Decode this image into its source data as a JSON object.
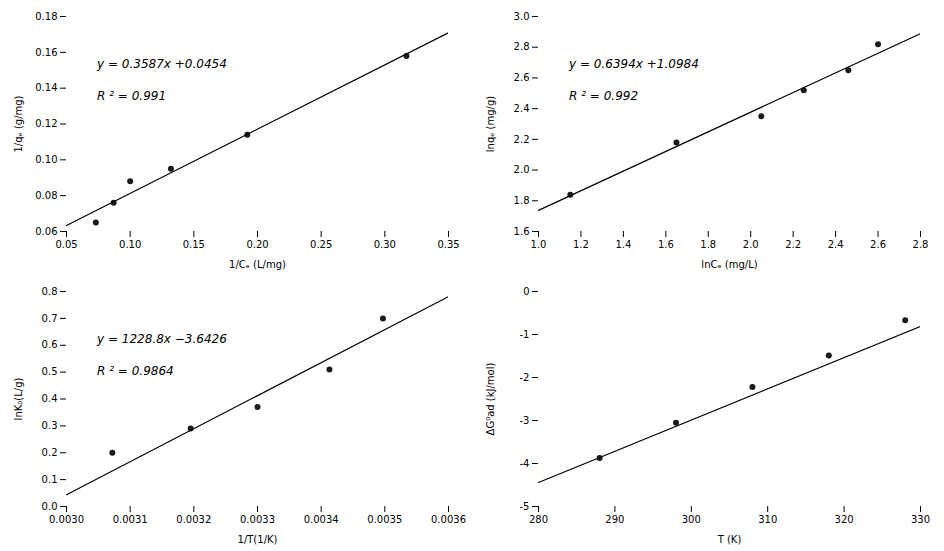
{
  "chart_data": [
    {
      "type": "scatter",
      "xlabel": "1/Cₑ (L/mg)",
      "ylabel": "1/qₑ (g/mg)",
      "annotations": [
        "y = 0.3587x +0.0454",
        "R ² = 0.991"
      ],
      "series": [
        {
          "type": "scatter",
          "color": "#1a1a1a",
          "x": [
            0.073,
            0.087,
            0.1,
            0.132,
            0.192,
            0.317
          ],
          "values": [
            0.065,
            0.076,
            0.088,
            0.095,
            0.114,
            0.158
          ]
        },
        {
          "type": "line",
          "color": "#000000",
          "x": [
            0.05,
            0.35
          ],
          "values": [
            0.063335,
            0.170945
          ]
        }
      ],
      "xlim": [
        0.05,
        0.35
      ],
      "ylim": [
        0.06,
        0.18
      ],
      "xticks": [
        0.05,
        {
          "value": 0.1,
          "label": "0.10"
        },
        0.15,
        {
          "value": 0.2,
          "label": "0.20"
        },
        0.25,
        {
          "value": 0.3,
          "label": "0.30"
        },
        0.35
      ],
      "yticks": [
        0.06,
        0.08,
        {
          "value": 0.1,
          "label": "0.10"
        },
        0.12,
        0.14,
        0.16,
        0.18
      ],
      "grid": false
    },
    {
      "type": "scatter",
      "xlabel": "lnCₑ (mg/L)",
      "ylabel": "lnqₑ (mg/g)",
      "annotations": [
        "y = 0.6394x +1.0984",
        "R ² = 0.992"
      ],
      "series": [
        {
          "type": "scatter",
          "color": "#1a1a1a",
          "x": [
            1.15,
            1.65,
            2.05,
            2.25,
            2.46,
            2.6
          ],
          "values": [
            1.84,
            2.18,
            2.35,
            2.52,
            2.65,
            2.82
          ]
        },
        {
          "type": "line",
          "color": "#000000",
          "x": [
            1.0,
            2.8
          ],
          "values": [
            1.7378,
            2.88872
          ]
        }
      ],
      "xlim": [
        1.0,
        2.8
      ],
      "ylim": [
        1.6,
        3.0
      ],
      "xticks": [
        {
          "value": 1.0,
          "label": "1.0"
        },
        1.2,
        1.4,
        1.6,
        1.8,
        {
          "value": 2.0,
          "label": "2.0"
        },
        2.2,
        2.4,
        2.6,
        2.8
      ],
      "yticks": [
        1.6,
        1.8,
        {
          "value": 2.0,
          "label": "2.0"
        },
        2.2,
        2.4,
        2.6,
        2.8,
        {
          "value": 3.0,
          "label": "3.0"
        }
      ],
      "grid": false
    },
    {
      "type": "scatter",
      "xlabel": "1/T(1/K)",
      "ylabel": "lnK₀(L/g)",
      "annotations": [
        "y = 1228.8x −3.6426",
        "R ² = 0.9864"
      ],
      "series": [
        {
          "type": "scatter",
          "color": "#1a1a1a",
          "x": [
            0.003072,
            0.003195,
            0.0033,
            0.003413,
            0.003497
          ],
          "values": [
            0.2,
            0.29,
            0.37,
            0.51,
            0.7
          ]
        },
        {
          "type": "line",
          "color": "#000000",
          "x": [
            0.003,
            0.0036
          ],
          "values": [
            0.0438,
            0.78108
          ]
        }
      ],
      "xlim": [
        0.003,
        0.0036
      ],
      "ylim": [
        0,
        0.8
      ],
      "xticks": [
        {
          "value": 0.003,
          "label": "0.0030"
        },
        0.0031,
        0.0032,
        0.0033,
        0.0034,
        0.0035,
        0.0036
      ],
      "yticks": [
        {
          "value": 0,
          "label": "0.0"
        },
        0.1,
        0.2,
        0.3,
        0.4,
        0.5,
        0.6,
        0.7,
        0.8
      ],
      "grid": false
    },
    {
      "type": "scatter",
      "xlabel": "T (K)",
      "ylabel": "ΔG⁰ad (kJ/mol)",
      "series": [
        {
          "type": "scatter",
          "color": "#1a1a1a",
          "x": [
            288,
            298,
            308,
            318,
            328
          ],
          "values": [
            -3.87,
            -3.05,
            -2.22,
            -1.49,
            -0.67
          ]
        },
        {
          "type": "line",
          "color": "#000000",
          "x": [
            280,
            330
          ],
          "values": [
            -4.442,
            -0.812
          ]
        }
      ],
      "xlim": [
        280,
        330
      ],
      "ylim": [
        -5,
        0
      ],
      "xticks": [
        280,
        290,
        300,
        310,
        320,
        330
      ],
      "yticks": [
        -5,
        -4,
        -3,
        -2,
        -1,
        0
      ],
      "grid": false
    }
  ]
}
